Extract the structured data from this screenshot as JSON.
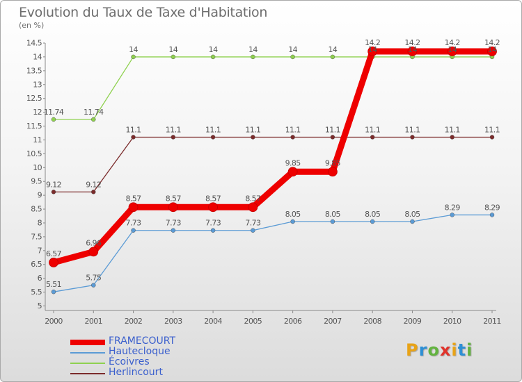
{
  "header": {
    "title": "Evolution du Taux de Taxe d'Habitation",
    "subtitle": "(en %)"
  },
  "logo": {
    "text": "Proxiti",
    "colors": [
      "#e8a317",
      "#2d8fd5",
      "#62b33f",
      "#e0332b",
      "#e8a317",
      "#2d8fd5",
      "#62b33f"
    ]
  },
  "chart_data": {
    "type": "line",
    "title": "Evolution du Taux de Taxe d'Habitation",
    "subtitle": "(en %)",
    "xlabel": "",
    "ylabel": "(en %)",
    "categories": [
      "2000",
      "2001",
      "2002",
      "2003",
      "2004",
      "2005",
      "2006",
      "2007",
      "2008",
      "2009",
      "2010",
      "2011"
    ],
    "ylim": [
      5,
      14.5
    ],
    "yticks": [
      "5",
      "5.5",
      "6",
      "6.5",
      "7",
      "7.5",
      "8",
      "8.5",
      "9",
      "9.5",
      "10",
      "10.5",
      "11",
      "11.5",
      "12",
      "12.5",
      "13",
      "13.5",
      "14",
      "14.5"
    ],
    "grid": false,
    "legend_position": "bottom-left",
    "series": [
      {
        "name": "FRAMECOURT",
        "color": "#ee0000",
        "thick": true,
        "values": [
          6.57,
          6.96,
          8.57,
          8.57,
          8.57,
          8.57,
          9.85,
          9.85,
          14.2,
          14.2,
          14.2,
          14.2
        ],
        "labels": [
          "6.57",
          "6.96",
          "8.57",
          "8.57",
          "8.57",
          "8.57",
          "9.85",
          "9.85",
          "14.2",
          "14.2",
          "14.2",
          "14.2"
        ]
      },
      {
        "name": "Hautecloque",
        "color": "#5b9bd5",
        "thick": false,
        "values": [
          5.51,
          5.75,
          7.73,
          7.73,
          7.73,
          7.73,
          8.05,
          8.05,
          8.05,
          8.05,
          8.29,
          8.29
        ],
        "labels": [
          "5.51",
          "5.75",
          "7.73",
          "7.73",
          "7.73",
          "7.73",
          "8.05",
          "8.05",
          "8.05",
          "8.05",
          "8.29",
          "8.29"
        ]
      },
      {
        "name": "Écoivres",
        "color": "#8fd14f",
        "thick": false,
        "values": [
          11.74,
          11.74,
          14,
          14,
          14,
          14,
          14,
          14,
          14,
          14,
          14,
          14
        ],
        "labels": [
          "11.74",
          "11.74",
          "14",
          "14",
          "14",
          "14",
          "14",
          "14",
          "14",
          "14",
          "14",
          "14"
        ]
      },
      {
        "name": "Herlincourt",
        "color": "#7b2b2b",
        "thick": false,
        "values": [
          9.12,
          9.12,
          11.1,
          11.1,
          11.1,
          11.1,
          11.1,
          11.1,
          11.1,
          11.1,
          11.1,
          11.1
        ],
        "labels": [
          "9.12",
          "9.12",
          "11.1",
          "11.1",
          "11.1",
          "11.1",
          "11.1",
          "11.1",
          "11.1",
          "11.1",
          "11.1",
          "11.1"
        ]
      }
    ]
  }
}
